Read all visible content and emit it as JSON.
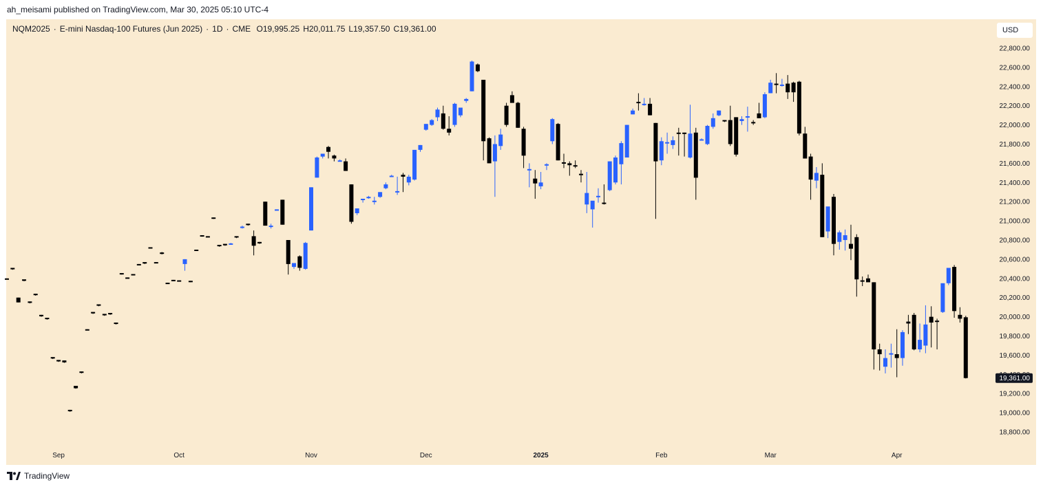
{
  "publish_line": "ah_meisami published on TradingView.com, Mar 30, 2025 05:10 UTC-4",
  "header": {
    "symbol": "NQM2025",
    "name": "E-mini Nasdaq-100 Futures (Jun 2025)",
    "interval": "1D",
    "exchange": "CME",
    "open": "O19,995.25",
    "high": "H20,011.75",
    "low": "L19,357.50",
    "close": "C19,361.00"
  },
  "currency_label": "USD",
  "brand": {
    "name": "TradingView",
    "icon": "tradingview-logo-icon"
  },
  "colors": {
    "up": "#2962ff",
    "down": "#000000",
    "background": "#faebd1",
    "price_tag": "#131722"
  },
  "chart_data": {
    "type": "candlestick",
    "interval": "1D",
    "y_axis": {
      "side": "right",
      "range": [
        18700,
        22900
      ],
      "ticks": [
        22800,
        22600,
        22400,
        22200,
        22000,
        21800,
        21600,
        21400,
        21200,
        21000,
        20800,
        20600,
        20400,
        20200,
        20000,
        19800,
        19600,
        19400,
        19200,
        19000,
        18800
      ],
      "tick_labels": [
        "22,800.00",
        "22,600.00",
        "22,400.00",
        "22,200.00",
        "22,000.00",
        "21,800.00",
        "21,600.00",
        "21,400.00",
        "21,200.00",
        "21,000.00",
        "20,800.00",
        "20,600.00",
        "20,400.00",
        "20,200.00",
        "20,000.00",
        "19,800.00",
        "19,600.00",
        "19,400.00",
        "19,200.00",
        "19,000.00",
        "18,800.00"
      ]
    },
    "x_axis": {
      "labels": [
        {
          "text": "Sep",
          "index": 9,
          "bold": false
        },
        {
          "text": "Oct",
          "index": 30,
          "bold": false
        },
        {
          "text": "Nov",
          "index": 53,
          "bold": false
        },
        {
          "text": "Dec",
          "index": 73,
          "bold": false
        },
        {
          "text": "2025",
          "index": 93,
          "bold": true
        },
        {
          "text": "Feb",
          "index": 114,
          "bold": false
        },
        {
          "text": "Mar",
          "index": 133,
          "bold": false
        },
        {
          "text": "Apr",
          "index": 155,
          "bold": false
        }
      ]
    },
    "last_price": {
      "value": 19361,
      "label": "19,361.00"
    },
    "candles": [
      [
        20400,
        20400,
        20395,
        20398
      ],
      [
        20510,
        20510,
        20490,
        20495
      ],
      [
        20200,
        20200,
        20150,
        20150
      ],
      [
        20390,
        20390,
        20370,
        20375
      ],
      [
        20160,
        20160,
        20140,
        20145
      ],
      [
        20240,
        20240,
        20220,
        20225
      ],
      [
        20020,
        20020,
        20000,
        20005
      ],
      [
        19990,
        19990,
        19970,
        19975
      ],
      [
        19580,
        19580,
        19560,
        19565
      ],
      [
        19550,
        19550,
        19530,
        19535
      ],
      [
        19545,
        19545,
        19520,
        19525
      ],
      [
        19030,
        19030,
        19010,
        19015
      ],
      [
        19280,
        19280,
        19250,
        19255
      ],
      [
        19430,
        19430,
        19410,
        19415
      ],
      [
        19870,
        19870,
        19860,
        19865
      ],
      [
        20050,
        20050,
        20030,
        20035
      ],
      [
        20130,
        20130,
        20110,
        20115
      ],
      [
        20030,
        20030,
        20010,
        20015
      ],
      [
        20040,
        20040,
        20020,
        20025
      ],
      [
        19940,
        19940,
        19920,
        19925
      ],
      [
        20455,
        20455,
        20440,
        20445
      ],
      [
        20410,
        20410,
        20405,
        20408
      ],
      [
        20445,
        20445,
        20435,
        20438
      ],
      [
        20550,
        20550,
        20545,
        20548
      ],
      [
        20570,
        20570,
        20550,
        20555
      ],
      [
        20725,
        20725,
        20720,
        20722
      ],
      [
        20570,
        20570,
        20565,
        20568
      ],
      [
        20670,
        20675,
        20650,
        20655
      ],
      [
        20355,
        20355,
        20345,
        20348
      ],
      [
        20385,
        20385,
        20380,
        20383
      ],
      [
        20380,
        20380,
        20370,
        20375
      ],
      [
        20550,
        20600,
        20480,
        20600
      ],
      [
        20375,
        20375,
        20360,
        20365
      ],
      [
        20700,
        20700,
        20690,
        20695
      ],
      [
        20850,
        20850,
        20835,
        20840
      ],
      [
        20840,
        20840,
        20830,
        20835
      ],
      [
        21035,
        21035,
        21020,
        21025
      ],
      [
        20750,
        20750,
        20730,
        20735
      ],
      [
        20760,
        20760,
        20740,
        20745
      ],
      [
        20760,
        20770,
        20750,
        20765
      ],
      [
        20840,
        20840,
        20820,
        20830
      ],
      [
        20940,
        20950,
        20920,
        20940
      ],
      [
        20970,
        20970,
        20950,
        20965
      ],
      [
        20840,
        20900,
        20640,
        20740
      ],
      [
        20780,
        20780,
        20760,
        20765
      ],
      [
        21200,
        21200,
        20950,
        20950
      ],
      [
        20950,
        20970,
        20920,
        20950
      ],
      [
        21120,
        21120,
        21110,
        21120
      ],
      [
        21220,
        21220,
        20960,
        20960
      ],
      [
        20800,
        20800,
        20440,
        20550
      ],
      [
        20520,
        20560,
        20500,
        20560
      ],
      [
        20630,
        20640,
        20480,
        20510
      ],
      [
        20500,
        20780,
        20490,
        20770
      ],
      [
        20900,
        21350,
        20900,
        21350
      ],
      [
        21450,
        21670,
        21450,
        21660
      ],
      [
        21670,
        21700,
        21650,
        21700
      ],
      [
        21770,
        21780,
        21650,
        21720
      ],
      [
        21680,
        21690,
        21620,
        21650
      ],
      [
        21630,
        21640,
        21620,
        21630
      ],
      [
        21620,
        21650,
        21520,
        21520
      ],
      [
        21380,
        21380,
        20970,
        20990
      ],
      [
        21080,
        21130,
        21060,
        21130
      ],
      [
        21230,
        21230,
        21190,
        21230
      ],
      [
        21240,
        21260,
        21230,
        21250
      ],
      [
        21200,
        21250,
        21170,
        21210
      ],
      [
        21250,
        21300,
        21240,
        21300
      ],
      [
        21340,
        21400,
        21330,
        21380
      ],
      [
        21460,
        21480,
        21460,
        21470
      ],
      [
        21310,
        21460,
        21270,
        21310
      ],
      [
        21480,
        21500,
        21300,
        21460
      ],
      [
        21400,
        21480,
        21370,
        21460
      ],
      [
        21430,
        21740,
        21420,
        21740
      ],
      [
        21740,
        21790,
        21720,
        21790
      ],
      [
        21950,
        22010,
        21940,
        22010
      ],
      [
        22000,
        22060,
        21990,
        22050
      ],
      [
        22080,
        22180,
        22040,
        22160
      ],
      [
        22120,
        22200,
        21950,
        21960
      ],
      [
        21960,
        22090,
        21890,
        21920
      ],
      [
        22000,
        22230,
        21980,
        22220
      ],
      [
        22100,
        22180,
        22080,
        22180
      ],
      [
        22250,
        22280,
        22230,
        22270
      ],
      [
        22350,
        22670,
        22350,
        22660
      ],
      [
        22630,
        22640,
        22550,
        22560
      ],
      [
        22470,
        22470,
        21630,
        21830
      ],
      [
        21860,
        21870,
        21600,
        21600
      ],
      [
        21620,
        21890,
        21250,
        21800
      ],
      [
        21780,
        21960,
        21740,
        21900
      ],
      [
        22200,
        22230,
        21980,
        22000
      ],
      [
        22310,
        22350,
        22230,
        22230
      ],
      [
        22230,
        22240,
        21970,
        21970
      ],
      [
        21960,
        21980,
        21550,
        21680
      ],
      [
        21530,
        21600,
        21350,
        21540
      ],
      [
        21440,
        21530,
        21230,
        21390
      ],
      [
        21360,
        21510,
        21330,
        21400
      ],
      [
        21580,
        21600,
        21530,
        21590
      ],
      [
        21830,
        22070,
        21800,
        22060
      ],
      [
        22010,
        22020,
        21630,
        21630
      ],
      [
        21610,
        21700,
        21550,
        21600
      ],
      [
        21600,
        21620,
        21470,
        21580
      ],
      [
        21580,
        21630,
        21550,
        21570
      ],
      [
        21490,
        21530,
        21400,
        21480
      ],
      [
        21170,
        21510,
        21080,
        21290
      ],
      [
        21120,
        21190,
        20930,
        21210
      ],
      [
        21260,
        21340,
        21190,
        21260
      ],
      [
        21190,
        21380,
        21170,
        21180
      ],
      [
        21320,
        21620,
        21310,
        21620
      ],
      [
        21400,
        21680,
        21380,
        21660
      ],
      [
        21590,
        21830,
        21380,
        21810
      ],
      [
        21660,
        22000,
        21660,
        22000
      ],
      [
        22110,
        22170,
        22110,
        22150
      ],
      [
        22240,
        22330,
        22150,
        22230
      ],
      [
        22210,
        22280,
        22200,
        22220
      ],
      [
        22220,
        22280,
        22100,
        22100
      ],
      [
        22020,
        22020,
        21020,
        21620
      ],
      [
        21630,
        21870,
        21580,
        21830
      ],
      [
        21820,
        21920,
        21700,
        21820
      ],
      [
        21790,
        21880,
        21750,
        21840
      ],
      [
        21920,
        21970,
        21680,
        21910
      ],
      [
        21920,
        21920,
        21670,
        21910
      ],
      [
        21660,
        22210,
        21650,
        21910
      ],
      [
        21920,
        21970,
        21220,
        21450
      ],
      [
        21840,
        21860,
        21850,
        21850
      ],
      [
        21800,
        22000,
        21790,
        21990
      ],
      [
        21980,
        22120,
        21960,
        22070
      ],
      [
        22100,
        22150,
        22090,
        22150
      ],
      [
        22050,
        22050,
        22030,
        22040
      ],
      [
        22050,
        22200,
        21780,
        21800
      ],
      [
        22080,
        22080,
        21670,
        21690
      ],
      [
        22040,
        22090,
        22000,
        22060
      ],
      [
        22090,
        22190,
        21930,
        22090
      ],
      [
        22030,
        22050,
        22000,
        22020
      ],
      [
        22120,
        22230,
        22070,
        22070
      ],
      [
        22080,
        22340,
        22070,
        22320
      ],
      [
        22330,
        22470,
        22330,
        22440
      ],
      [
        22430,
        22540,
        22330,
        22420
      ],
      [
        22420,
        22480,
        22400,
        22420
      ],
      [
        22430,
        22520,
        22270,
        22340
      ],
      [
        22440,
        22450,
        22240,
        22340
      ],
      [
        22450,
        22460,
        21890,
        21910
      ],
      [
        21910,
        21980,
        21650,
        21650
      ],
      [
        21670,
        21700,
        21220,
        21430
      ],
      [
        21420,
        21560,
        21340,
        21500
      ],
      [
        21480,
        21600,
        20830,
        20830
      ],
      [
        20890,
        21140,
        20820,
        21150
      ],
      [
        21250,
        21280,
        20640,
        20760
      ],
      [
        20780,
        20900,
        20700,
        20880
      ],
      [
        20800,
        20910,
        20690,
        20850
      ],
      [
        20760,
        20960,
        20590,
        20710
      ],
      [
        20830,
        20860,
        20210,
        20390
      ],
      [
        20380,
        20420,
        20320,
        20370
      ],
      [
        20400,
        20440,
        20390,
        20360
      ],
      [
        20360,
        20360,
        19450,
        19660
      ],
      [
        19660,
        19720,
        19440,
        19610
      ],
      [
        19480,
        19660,
        19410,
        19570
      ],
      [
        19620,
        19720,
        19470,
        19620
      ],
      [
        19610,
        19870,
        19370,
        19570
      ],
      [
        19570,
        19860,
        19490,
        19840
      ],
      [
        19950,
        20020,
        19820,
        19930
      ],
      [
        20020,
        20040,
        19650,
        19660
      ],
      [
        19660,
        19930,
        19630,
        19760
      ],
      [
        19700,
        20120,
        19620,
        19920
      ],
      [
        20000,
        20110,
        19680,
        19940
      ],
      [
        19960,
        19980,
        19660,
        19950
      ],
      [
        20050,
        20340,
        20040,
        20350
      ],
      [
        20350,
        20510,
        20330,
        20510
      ],
      [
        20520,
        20540,
        19990,
        20060
      ],
      [
        20020,
        20100,
        19940,
        19980
      ],
      [
        19995,
        20011,
        19357,
        19361
      ]
    ]
  }
}
